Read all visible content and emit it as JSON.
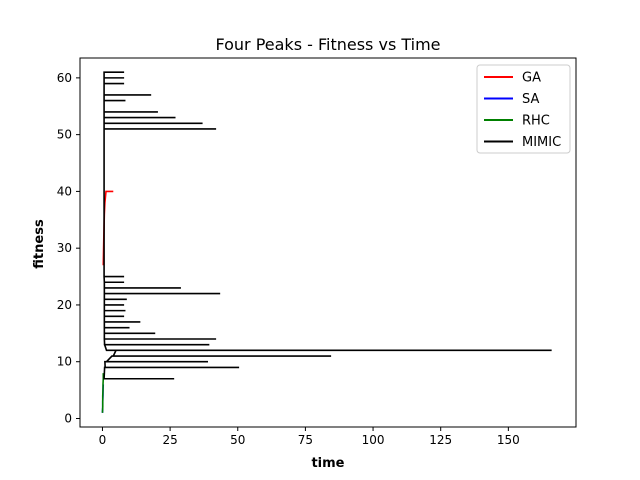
{
  "chart_data": {
    "type": "line",
    "title": "Four Peaks - Fitness vs Time",
    "xlabel": "time",
    "ylabel": "fitness",
    "xlim": [
      -8.3,
      175
    ],
    "ylim": [
      -1.5,
      63.5
    ],
    "xticks": [
      0,
      25,
      50,
      75,
      100,
      125,
      150
    ],
    "yticks": [
      0,
      10,
      20,
      30,
      40,
      50,
      60
    ],
    "grid": false,
    "legend": "top-right",
    "series": [
      {
        "name": "GA",
        "color": "#ff0000",
        "points": [
          [
            0.3,
            27
          ],
          [
            0.5,
            32
          ],
          [
            0.7,
            36
          ],
          [
            0.9,
            38
          ],
          [
            1.1,
            39
          ],
          [
            1.3,
            40
          ],
          [
            4.0,
            40
          ]
        ]
      },
      {
        "name": "SA",
        "color": "#0000ff",
        "points": [
          [
            0,
            1
          ],
          [
            0.1,
            2
          ],
          [
            0.1,
            3
          ],
          [
            0.2,
            4
          ],
          [
            0.2,
            5
          ],
          [
            0.3,
            6
          ]
        ]
      },
      {
        "name": "RHC",
        "color": "#008000",
        "points": [
          [
            0,
            1
          ],
          [
            0.1,
            2
          ],
          [
            0.1,
            3
          ],
          [
            0.1,
            4
          ],
          [
            0.2,
            5
          ],
          [
            0.2,
            6
          ],
          [
            0.3,
            7
          ],
          [
            0.3,
            8
          ]
        ]
      },
      {
        "name": "MIMIC",
        "color": "#000000",
        "points": [
          [
            0.5,
            7
          ],
          [
            26.5,
            7
          ],
          [
            0.6,
            7
          ],
          [
            0.7,
            8
          ],
          [
            0.8,
            9
          ],
          [
            50.5,
            9
          ],
          [
            1.0,
            9
          ],
          [
            0.9,
            10
          ],
          [
            39,
            10
          ],
          [
            1.2,
            10
          ],
          [
            1.5,
            10
          ],
          [
            3.5,
            11
          ],
          [
            84.5,
            11
          ],
          [
            4.0,
            11
          ],
          [
            5.0,
            12
          ],
          [
            166,
            12
          ],
          [
            1.5,
            12
          ],
          [
            0.8,
            13
          ],
          [
            39.5,
            13
          ],
          [
            0.8,
            13
          ],
          [
            0.7,
            14
          ],
          [
            42,
            14
          ],
          [
            0.7,
            14
          ],
          [
            0.7,
            15
          ],
          [
            19.5,
            15
          ],
          [
            0.7,
            15
          ],
          [
            0.7,
            16
          ],
          [
            10,
            16
          ],
          [
            0.7,
            16
          ],
          [
            0.7,
            17
          ],
          [
            14,
            17
          ],
          [
            0.7,
            17
          ],
          [
            0.7,
            18
          ],
          [
            8,
            18
          ],
          [
            0.7,
            18
          ],
          [
            0.7,
            19
          ],
          [
            8.5,
            19
          ],
          [
            0.7,
            19
          ],
          [
            0.7,
            20
          ],
          [
            8,
            20
          ],
          [
            0.7,
            20
          ],
          [
            0.7,
            21
          ],
          [
            9,
            21
          ],
          [
            0.7,
            21
          ],
          [
            0.7,
            22
          ],
          [
            43.5,
            22
          ],
          [
            0.7,
            22
          ],
          [
            0.7,
            23
          ],
          [
            29,
            23
          ],
          [
            0.7,
            23
          ],
          [
            0.7,
            24
          ],
          [
            8,
            24
          ],
          [
            0.7,
            24
          ],
          [
            0.6,
            25
          ],
          [
            8,
            25
          ],
          [
            0.6,
            25
          ],
          [
            0.6,
            51
          ],
          [
            42,
            51
          ],
          [
            0.6,
            51
          ],
          [
            0.6,
            52
          ],
          [
            37,
            52
          ],
          [
            0.6,
            52
          ],
          [
            0.6,
            53
          ],
          [
            27,
            53
          ],
          [
            0.6,
            53
          ],
          [
            0.6,
            54
          ],
          [
            20.5,
            54
          ],
          [
            0.6,
            54
          ],
          [
            0.6,
            56
          ],
          [
            8.5,
            56
          ],
          [
            0.6,
            56
          ],
          [
            0.6,
            57
          ],
          [
            18,
            57
          ],
          [
            0.6,
            57
          ],
          [
            0.6,
            59
          ],
          [
            8,
            59
          ],
          [
            0.6,
            59
          ],
          [
            0.6,
            60
          ],
          [
            8,
            60
          ],
          [
            0.6,
            60
          ],
          [
            0.6,
            61
          ],
          [
            8,
            61
          ],
          [
            0.6,
            61
          ]
        ]
      }
    ]
  }
}
